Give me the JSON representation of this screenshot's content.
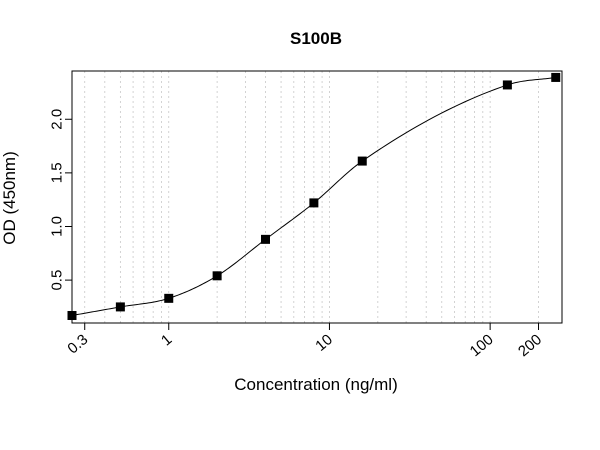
{
  "chart_data": {
    "type": "scatter",
    "title": "S100B",
    "xlabel": "Concentration (ng/ml)",
    "ylabel": "OD (450nm)",
    "x_scale": "log",
    "x_range": [
      0.25,
      280
    ],
    "y_range": [
      0.1,
      2.45
    ],
    "grid": "vertical-dotted-log",
    "x_ticks": [
      {
        "value": 0.3,
        "label": "0.3"
      },
      {
        "value": 1,
        "label": "1"
      },
      {
        "value": 10,
        "label": "10"
      },
      {
        "value": 100,
        "label": "100"
      },
      {
        "value": 200,
        "label": "200"
      }
    ],
    "y_ticks": [
      {
        "value": 0.5,
        "label": "0.5"
      },
      {
        "value": 1.0,
        "label": "1.0"
      },
      {
        "value": 1.5,
        "label": "1.5"
      },
      {
        "value": 2.0,
        "label": "2.0"
      }
    ],
    "series": [
      {
        "x": [
          0.25,
          0.5,
          1,
          2,
          4,
          8,
          16,
          128,
          256
        ],
        "y": [
          0.17,
          0.25,
          0.33,
          0.54,
          0.88,
          1.22,
          1.61,
          2.32,
          2.39
        ],
        "marker": "square",
        "fit_curve": true,
        "color": "#000000"
      }
    ]
  }
}
